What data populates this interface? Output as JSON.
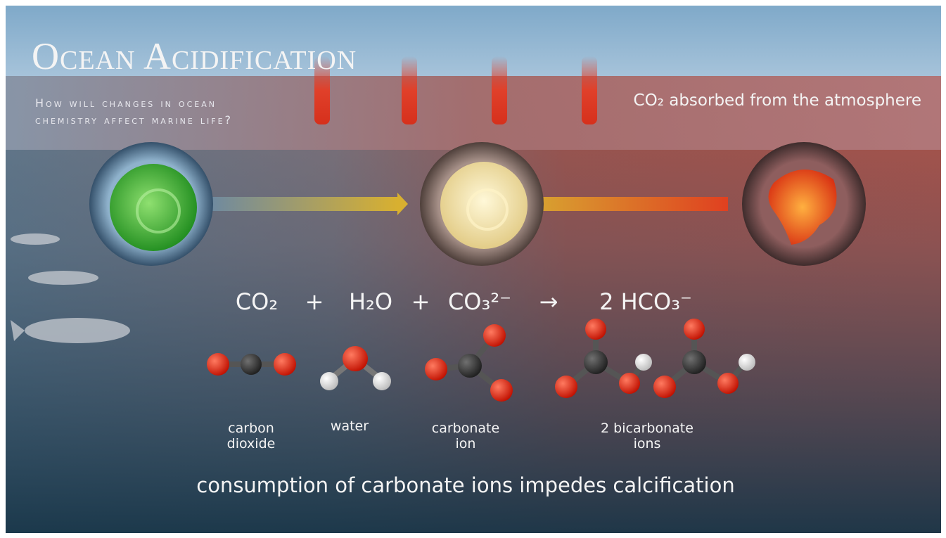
{
  "header": {
    "title": "Ocean Acidification",
    "subtitle_lines": [
      "How will changes in ocean",
      "chemistry affect marine life?"
    ]
  },
  "co2_note": "CO₂ absorbed from the atmosphere",
  "equation": {
    "terms": [
      "CO₂",
      "+",
      "H₂O",
      "+",
      "CO₃²⁻",
      "→",
      "2 HCO₃⁻"
    ]
  },
  "molecules": [
    {
      "label_lines": [
        "carbon",
        "dioxide"
      ]
    },
    {
      "label_lines": [
        "water"
      ]
    },
    {
      "label_lines": [
        "carbonate",
        "ion"
      ]
    },
    {
      "label_lines": [
        "2 bicarbonate",
        "ions"
      ]
    }
  ],
  "footer": "consumption of carbonate ions impedes calcification"
}
